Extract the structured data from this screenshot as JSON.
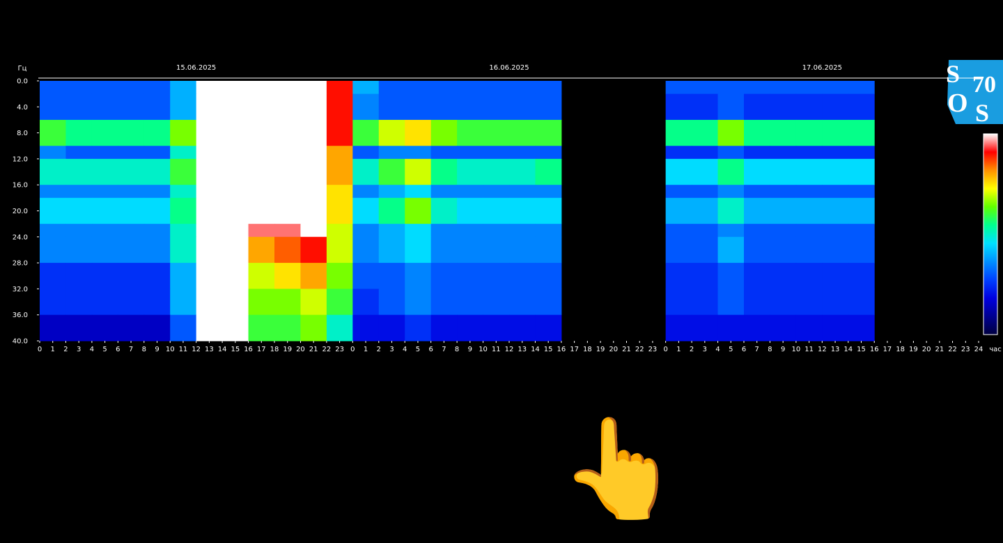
{
  "chart_data": {
    "type": "heatmap",
    "y_label": "Гц",
    "x_label": "час",
    "dates": [
      "15.06.2025",
      "16.06.2025",
      "17.06.2025"
    ],
    "xlim": [
      0,
      72
    ],
    "ylim": [
      0,
      40
    ],
    "y_inverted": true,
    "zlim": [
      0,
      10
    ],
    "colorscale": [
      "#000040",
      "#000090",
      "#0000e0",
      "#0040ff",
      "#0090ff",
      "#00e0ff",
      "#00ff90",
      "#60ff00",
      "#ffff00",
      "#ff9000",
      "#ff0000",
      "#ffffff"
    ],
    "x_bins": [
      0,
      2,
      4,
      6,
      8,
      10,
      12,
      14,
      16,
      18,
      20,
      22,
      24,
      26,
      28,
      30,
      32,
      34,
      36,
      38,
      40,
      42,
      44,
      46,
      48,
      50,
      52,
      54,
      56,
      58,
      60,
      62,
      64,
      66,
      68,
      70,
      72
    ],
    "y_bins": [
      0,
      2,
      6,
      10,
      12,
      16,
      18,
      22,
      24,
      28,
      32,
      36,
      40
    ],
    "values": [
      [
        3,
        3,
        3,
        3,
        3,
        4,
        10,
        10,
        10,
        10,
        10,
        9,
        4,
        3,
        3,
        3,
        3,
        3,
        3,
        3,
        null,
        null,
        null,
        null,
        3,
        3,
        3,
        3,
        3,
        3,
        3,
        3,
        null,
        null,
        null,
        null
      ],
      [
        3,
        3,
        3,
        3,
        3,
        4,
        10,
        10,
        10,
        10,
        10,
        9,
        3.5,
        3,
        3,
        3,
        3,
        3,
        3,
        3,
        null,
        null,
        null,
        null,
        2.5,
        2.5,
        3,
        2.5,
        2.5,
        2.5,
        2.5,
        2.5,
        null,
        null,
        null,
        null
      ],
      [
        6,
        5.5,
        5.5,
        5.5,
        5.5,
        6.5,
        10,
        10,
        10,
        10,
        10,
        9,
        6,
        7,
        7.5,
        6.5,
        6,
        6,
        6,
        6,
        null,
        null,
        null,
        null,
        5.5,
        5.5,
        6.5,
        5.5,
        5.5,
        5.5,
        5.5,
        5.5,
        null,
        null,
        null,
        null
      ],
      [
        3.5,
        3,
        3,
        3,
        3,
        5,
        10,
        10,
        10,
        10,
        10,
        8,
        3,
        3.5,
        3.5,
        3,
        3,
        3,
        3,
        3,
        null,
        null,
        null,
        null,
        2.5,
        2.5,
        3,
        2.5,
        2.5,
        2.5,
        2.5,
        2.5,
        null,
        null,
        null,
        null
      ],
      [
        5,
        5,
        5,
        5,
        5,
        6,
        10,
        10,
        10,
        10,
        10,
        8,
        5,
        6,
        7,
        5.5,
        5,
        5,
        5,
        5.5,
        null,
        null,
        null,
        null,
        4.5,
        4.5,
        5.5,
        4.5,
        4.5,
        4.5,
        4.5,
        4.5,
        null,
        null,
        null,
        null
      ],
      [
        3.5,
        3.5,
        3.5,
        3.5,
        3.5,
        5,
        10,
        10,
        10,
        10,
        10,
        7.5,
        3.5,
        4,
        4.5,
        3.5,
        3.5,
        3.5,
        3.5,
        3.5,
        null,
        null,
        null,
        null,
        3,
        3,
        3.5,
        3,
        3,
        3,
        3,
        3,
        null,
        null,
        null,
        null
      ],
      [
        4.5,
        4.5,
        4.5,
        4.5,
        4.5,
        5.5,
        10,
        10,
        10,
        10,
        10,
        7.5,
        4.5,
        5.5,
        6.5,
        5,
        4.5,
        4.5,
        4.5,
        4.5,
        null,
        null,
        null,
        null,
        4,
        4,
        5,
        4,
        4,
        4,
        4,
        4,
        null,
        null,
        null,
        null
      ],
      [
        3.5,
        3.5,
        3.5,
        3.5,
        3.5,
        5,
        10,
        10,
        9.5,
        9.5,
        10,
        7,
        3.5,
        4,
        4.5,
        3.5,
        3.5,
        3.5,
        3.5,
        3.5,
        null,
        null,
        null,
        null,
        3,
        3,
        3.5,
        3,
        3,
        3,
        3,
        3,
        null,
        null,
        null,
        null
      ],
      [
        3.5,
        3.5,
        3.5,
        3.5,
        3.5,
        5,
        10,
        10,
        8,
        8.5,
        9,
        7,
        3.5,
        4,
        4.5,
        3.5,
        3.5,
        3.5,
        3.5,
        3.5,
        null,
        null,
        null,
        null,
        3,
        3,
        4,
        3,
        3,
        3,
        3,
        3,
        null,
        null,
        null,
        null
      ],
      [
        2.5,
        2.5,
        2.5,
        2.5,
        2.5,
        4,
        10,
        10,
        7,
        7.5,
        8,
        6.5,
        3,
        3,
        3.5,
        3,
        3,
        3,
        3,
        3,
        null,
        null,
        null,
        null,
        2.5,
        2.5,
        3,
        2.5,
        2.5,
        2.5,
        2.5,
        2.5,
        null,
        null,
        null,
        null
      ],
      [
        2.5,
        2.5,
        2.5,
        2.5,
        2.5,
        4,
        10,
        10,
        6.5,
        6.5,
        7,
        6,
        2.5,
        3,
        3.5,
        3,
        3,
        3,
        3,
        3,
        null,
        null,
        null,
        null,
        2.5,
        2.5,
        3,
        2.5,
        2.5,
        2.5,
        2.5,
        2.5,
        null,
        null,
        null,
        null
      ],
      [
        1.5,
        1.5,
        1.5,
        1.5,
        1.5,
        3,
        10,
        10,
        6,
        6,
        6.5,
        5,
        2,
        2,
        2.5,
        2,
        2,
        2,
        2,
        2,
        null,
        null,
        null,
        null,
        2,
        2,
        2,
        2,
        2,
        2,
        2,
        2,
        null,
        null,
        null,
        null
      ]
    ],
    "yticks": [
      {
        "value": 0,
        "label": "0.0"
      },
      {
        "value": 4,
        "label": "4.0"
      },
      {
        "value": 8,
        "label": "8.0"
      },
      {
        "value": 12,
        "label": "12.0"
      },
      {
        "value": 16,
        "label": "16.0"
      },
      {
        "value": 20,
        "label": "20.0"
      },
      {
        "value": 24,
        "label": "24.0"
      },
      {
        "value": 28,
        "label": "28.0"
      },
      {
        "value": 32,
        "label": "32.0"
      },
      {
        "value": 36,
        "label": "36.0"
      },
      {
        "value": 40,
        "label": "40.0"
      }
    ],
    "xticks": [
      0,
      1,
      2,
      3,
      4,
      5,
      6,
      7,
      8,
      9,
      10,
      11,
      12,
      13,
      14,
      15,
      16,
      17,
      18,
      19,
      20,
      21,
      22,
      23,
      {
        "value": 24,
        "label": "0"
      },
      {
        "value": 25,
        "label": "1"
      },
      {
        "value": 26,
        "label": "2"
      },
      {
        "value": 27,
        "label": "3"
      },
      {
        "value": 28,
        "label": "4"
      },
      {
        "value": 29,
        "label": "5"
      },
      {
        "value": 30,
        "label": "6"
      },
      {
        "value": 31,
        "label": "7"
      },
      {
        "value": 32,
        "label": "8"
      },
      {
        "value": 33,
        "label": "9"
      },
      {
        "value": 34,
        "label": "10"
      },
      {
        "value": 35,
        "label": "11"
      },
      {
        "value": 36,
        "label": "12"
      },
      {
        "value": 37,
        "label": "13"
      },
      {
        "value": 38,
        "label": "14"
      },
      {
        "value": 39,
        "label": "15"
      },
      {
        "value": 40,
        "label": "16"
      },
      {
        "value": 41,
        "label": "17"
      },
      {
        "value": 42,
        "label": "18"
      },
      {
        "value": 43,
        "label": "19"
      },
      {
        "value": 44,
        "label": "20"
      },
      {
        "value": 45,
        "label": "21"
      },
      {
        "value": 46,
        "label": "22"
      },
      {
        "value": 47,
        "label": "23"
      },
      {
        "value": 48,
        "label": "0"
      },
      {
        "value": 49,
        "label": "1"
      },
      {
        "value": 50,
        "label": "2"
      },
      {
        "value": 51,
        "label": "3"
      },
      {
        "value": 52,
        "label": "4"
      },
      {
        "value": 53,
        "label": "5"
      },
      {
        "value": 54,
        "label": "6"
      },
      {
        "value": 55,
        "label": "7"
      },
      {
        "value": 56,
        "label": "8"
      },
      {
        "value": 57,
        "label": "9"
      },
      {
        "value": 58,
        "label": "10"
      },
      {
        "value": 59,
        "label": "11"
      },
      {
        "value": 60,
        "label": "12"
      },
      {
        "value": 61,
        "label": "13"
      },
      {
        "value": 62,
        "label": "14"
      },
      {
        "value": 63,
        "label": "15"
      },
      {
        "value": 64,
        "label": "16"
      },
      {
        "value": 65,
        "label": "17"
      },
      {
        "value": 66,
        "label": "18"
      },
      {
        "value": 67,
        "label": "19"
      },
      {
        "value": 68,
        "label": "20"
      },
      {
        "value": 69,
        "label": "21"
      },
      {
        "value": 70,
        "label": "22"
      },
      {
        "value": 71,
        "label": "23"
      },
      {
        "value": 72,
        "label": "24"
      }
    ]
  },
  "logo": {
    "s1": "S",
    "num": "70",
    "o": "O",
    "s2": "S"
  },
  "pointer": "👆"
}
